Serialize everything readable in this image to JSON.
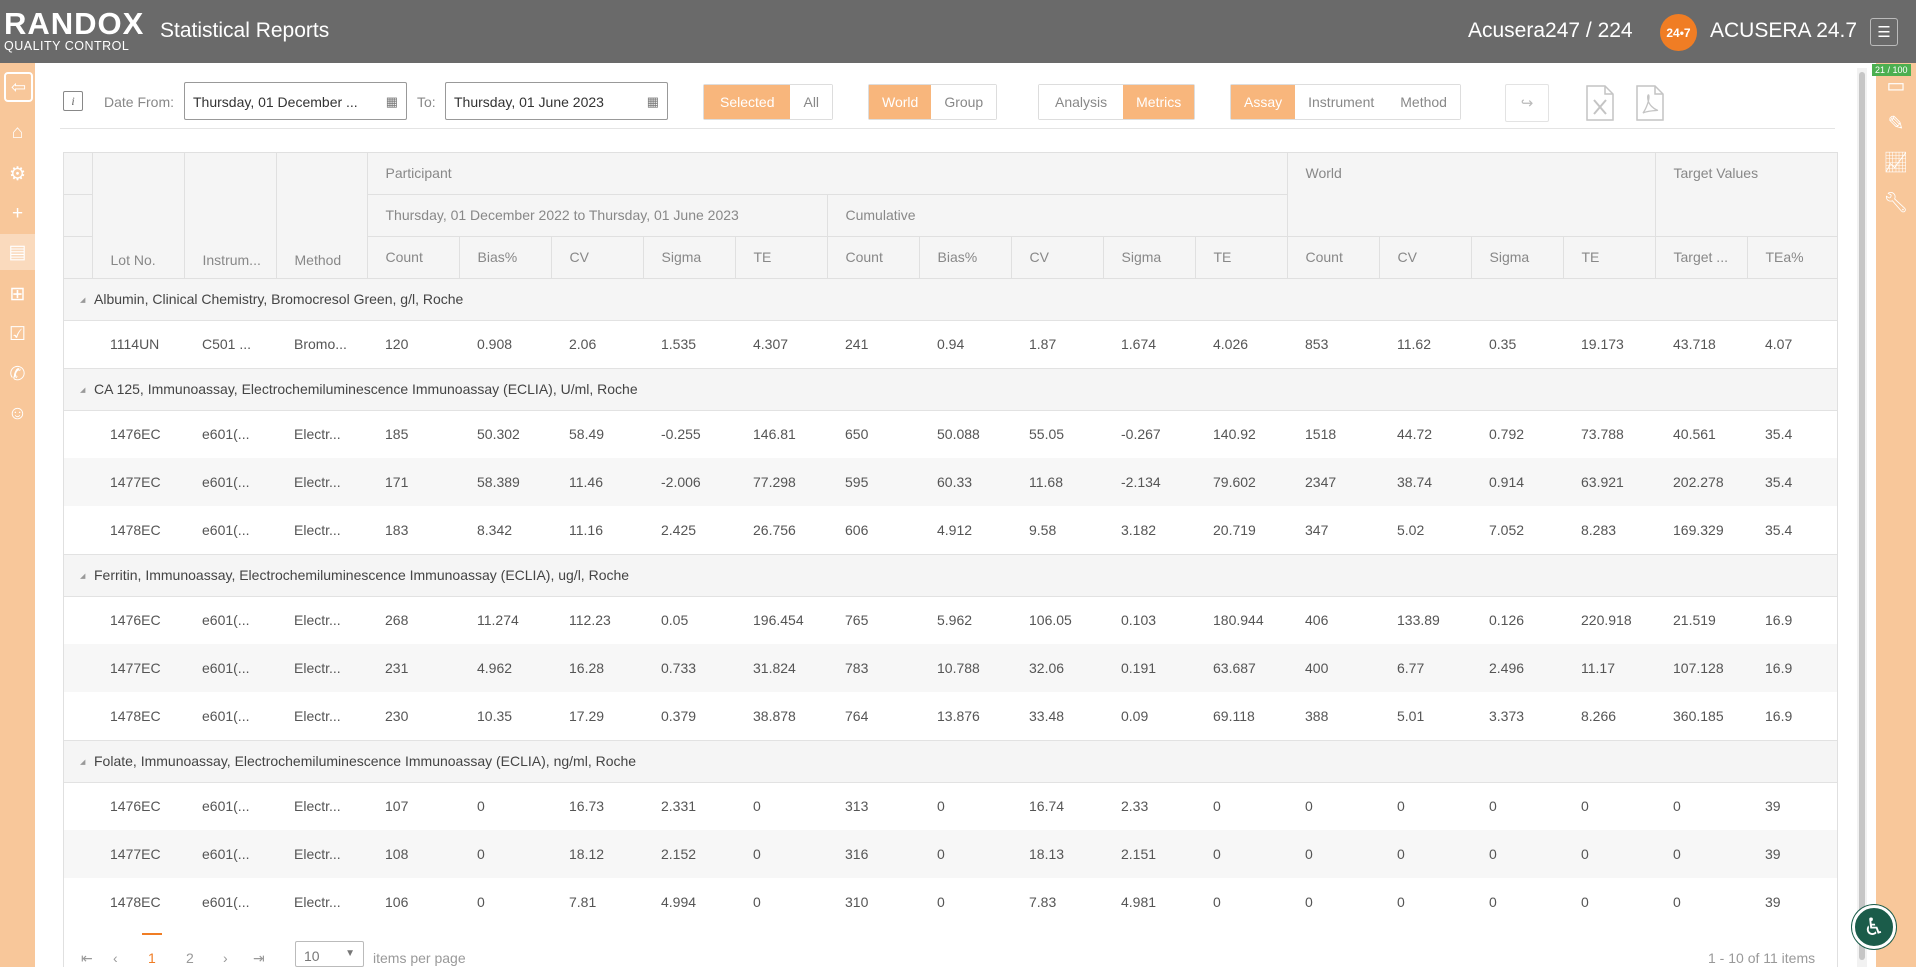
{
  "header": {
    "logo_top": "RANDOX",
    "logo_bottom": "QUALITY CONTROL",
    "title": "Statistical Reports",
    "counter": "Acusera247 / 224",
    "badge": "24•7",
    "brand": "ACUSERA 24.7"
  },
  "scroll": {
    "count": "21 / 100"
  },
  "toolbar": {
    "date_from_label": "Date From:",
    "date_from_value": "Thursday, 01 December ...",
    "to_label": "To:",
    "to_value": "Thursday, 01 June 2023",
    "scope": {
      "selected": "Selected",
      "all": "All"
    },
    "level": {
      "world": "World",
      "group": "Group"
    },
    "view": {
      "analysis": "Analysis",
      "metrics": "Metrics"
    },
    "grouping": {
      "assay": "Assay",
      "instrument": "Instrument",
      "method": "Method"
    }
  },
  "columns": {
    "participant": "Participant",
    "period": "Thursday, 01 December 2022 to Thursday, 01 June 2023",
    "cumulative": "Cumulative",
    "world": "World",
    "target_values": "Target Values",
    "lot": "Lot No.",
    "instrument": "Instrum...",
    "method": "Method",
    "count": "Count",
    "bias": "Bias%",
    "cv": "CV",
    "sigma": "Sigma",
    "te": "TE",
    "target": "Target ...",
    "tea": "TEa%"
  },
  "groups": [
    {
      "name": "Albumin, Clinical Chemistry, Bromocresol Green, g/l, Roche",
      "rows": [
        [
          "1114UN",
          "C501 ...",
          "Bromo...",
          "120",
          "0.908",
          "2.06",
          "1.535",
          "4.307",
          "241",
          "0.94",
          "1.87",
          "1.674",
          "4.026",
          "853",
          "11.62",
          "0.35",
          "19.173",
          "43.718",
          "4.07"
        ]
      ]
    },
    {
      "name": "CA 125, Immunoassay, Electrochemiluminescence Immunoassay (ECLIA), U/ml, Roche",
      "rows": [
        [
          "1476EC",
          "e601(...",
          "Electr...",
          "185",
          "50.302",
          "58.49",
          "-0.255",
          "146.81",
          "650",
          "50.088",
          "55.05",
          "-0.267",
          "140.92",
          "1518",
          "44.72",
          "0.792",
          "73.788",
          "40.561",
          "35.4"
        ],
        [
          "1477EC",
          "e601(...",
          "Electr...",
          "171",
          "58.389",
          "11.46",
          "-2.006",
          "77.298",
          "595",
          "60.33",
          "11.68",
          "-2.134",
          "79.602",
          "2347",
          "38.74",
          "0.914",
          "63.921",
          "202.278",
          "35.4"
        ],
        [
          "1478EC",
          "e601(...",
          "Electr...",
          "183",
          "8.342",
          "11.16",
          "2.425",
          "26.756",
          "606",
          "4.912",
          "9.58",
          "3.182",
          "20.719",
          "347",
          "5.02",
          "7.052",
          "8.283",
          "169.329",
          "35.4"
        ]
      ]
    },
    {
      "name": "Ferritin, Immunoassay, Electrochemiluminescence Immunoassay (ECLIA), ug/l, Roche",
      "rows": [
        [
          "1476EC",
          "e601(...",
          "Electr...",
          "268",
          "11.274",
          "112.23",
          "0.05",
          "196.454",
          "765",
          "5.962",
          "106.05",
          "0.103",
          "180.944",
          "406",
          "133.89",
          "0.126",
          "220.918",
          "21.519",
          "16.9"
        ],
        [
          "1477EC",
          "e601(...",
          "Electr...",
          "231",
          "4.962",
          "16.28",
          "0.733",
          "31.824",
          "783",
          "10.788",
          "32.06",
          "0.191",
          "63.687",
          "400",
          "6.77",
          "2.496",
          "11.17",
          "107.128",
          "16.9"
        ],
        [
          "1478EC",
          "e601(...",
          "Electr...",
          "230",
          "10.35",
          "17.29",
          "0.379",
          "38.878",
          "764",
          "13.876",
          "33.48",
          "0.09",
          "69.118",
          "388",
          "5.01",
          "3.373",
          "8.266",
          "360.185",
          "16.9"
        ]
      ]
    },
    {
      "name": "Folate, Immunoassay, Electrochemiluminescence Immunoassay (ECLIA), ng/ml, Roche",
      "rows": [
        [
          "1476EC",
          "e601(...",
          "Electr...",
          "107",
          "0",
          "16.73",
          "2.331",
          "0",
          "313",
          "0",
          "16.74",
          "2.33",
          "0",
          "0",
          "0",
          "0",
          "0",
          "0",
          "39"
        ],
        [
          "1477EC",
          "e601(...",
          "Electr...",
          "108",
          "0",
          "18.12",
          "2.152",
          "0",
          "316",
          "0",
          "18.13",
          "2.151",
          "0",
          "0",
          "0",
          "0",
          "0",
          "0",
          "39"
        ],
        [
          "1478EC",
          "e601(...",
          "Electr...",
          "106",
          "0",
          "7.81",
          "4.994",
          "0",
          "310",
          "0",
          "7.83",
          "4.981",
          "0",
          "0",
          "0",
          "0",
          "0",
          "0",
          "39"
        ]
      ]
    }
  ],
  "pager": {
    "page1": "1",
    "page2": "2",
    "per_page": "10",
    "per_page_label": "items per page",
    "summary": "1 - 10 of 11 items"
  }
}
